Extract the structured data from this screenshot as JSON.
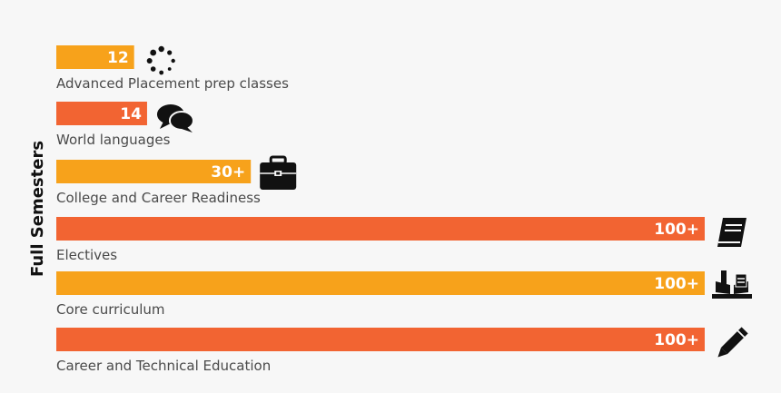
{
  "chart_data": {
    "type": "bar",
    "orientation": "horizontal",
    "ylabel": "Full Semesters",
    "categories": [
      "Advanced Placement prep classes",
      "World languages",
      "College and Career Readiness",
      "Electives",
      "Core curriculum",
      "Career and Technical Education"
    ],
    "values": [
      12,
      14,
      30,
      100,
      100,
      100
    ],
    "value_labels": [
      "12",
      "14",
      "30+",
      "100+",
      "100+",
      "100+"
    ],
    "icons": [
      "loading-spinner-icon",
      "speech-bubbles-icon",
      "briefcase-icon",
      "book-icon",
      "open-book-icon",
      "pencil-icon"
    ],
    "bar_colors": [
      "#f7a21b",
      "#f26432",
      "#f7a21b",
      "#f26432",
      "#f7a21b",
      "#f26432"
    ],
    "xlim": [
      0,
      100
    ],
    "grid": false,
    "legend": "none"
  }
}
